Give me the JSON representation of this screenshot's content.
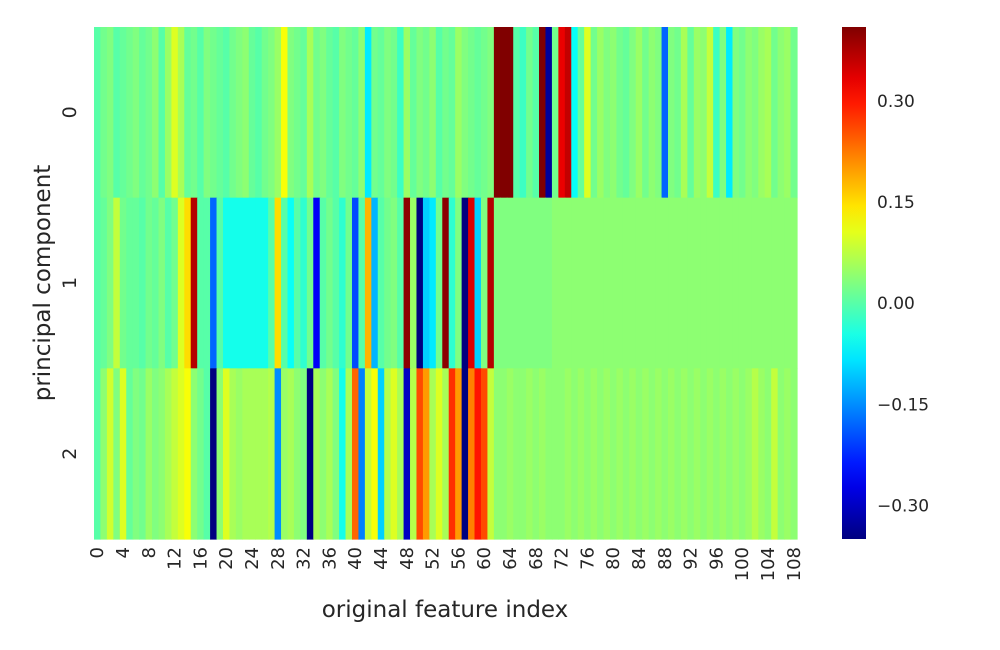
{
  "chart_data": {
    "type": "heatmap",
    "title": "",
    "xlabel": "original feature index",
    "ylabel": "principal component",
    "x_tick_labels": [
      "0",
      "4",
      "8",
      "12",
      "16",
      "20",
      "24",
      "28",
      "32",
      "36",
      "40",
      "44",
      "48",
      "52",
      "56",
      "60",
      "64",
      "68",
      "72",
      "76",
      "80",
      "84",
      "88",
      "92",
      "96",
      "100",
      "104",
      "108"
    ],
    "y_tick_labels": [
      "0",
      "1",
      "2"
    ],
    "colormap": "jet",
    "color_range": [
      -0.35,
      0.41
    ],
    "colorbar_ticks": [
      "0.30",
      "0.15",
      "0.00",
      "−0.15",
      "−0.30"
    ],
    "colorbar_tick_values": [
      0.3,
      0.15,
      0.0,
      -0.15,
      -0.3
    ],
    "rows": [
      [
        0.0,
        0.02,
        0.03,
        0.0,
        0.01,
        0.02,
        0.03,
        0.01,
        0.02,
        0.04,
        0.0,
        0.05,
        0.1,
        0.06,
        0.01,
        0.02,
        0.0,
        0.03,
        0.02,
        0.01,
        0.0,
        0.02,
        0.03,
        0.04,
        0.01,
        0.0,
        0.02,
        0.03,
        0.05,
        0.12,
        0.03,
        0.02,
        0.01,
        0.06,
        0.02,
        0.03,
        0.01,
        0.0,
        0.03,
        0.02,
        0.01,
        0.04,
        -0.08,
        0.02,
        0.01,
        0.03,
        0.02,
        -0.02,
        0.05,
        0.01,
        0.03,
        0.02,
        0.04,
        0.0,
        0.02,
        0.01,
        0.05,
        0.03,
        0.02,
        0.01,
        0.02,
        0.03,
        0.41,
        0.41,
        0.41,
        0.0,
        -0.02,
        0.02,
        0.0,
        0.41,
        -0.33,
        0.02,
        0.33,
        0.36,
        -0.06,
        0.01,
        0.1,
        0.02,
        0.05,
        0.03,
        0.04,
        0.02,
        0.01,
        0.03,
        0.05,
        0.02,
        0.04,
        0.03,
        -0.18,
        0.03,
        0.02,
        0.06,
        0.01,
        0.05,
        0.04,
        0.08,
        -0.02,
        0.03,
        -0.08,
        0.03,
        0.02,
        0.04,
        0.03,
        0.05,
        0.06,
        0.02,
        0.04,
        0.05,
        0.02
      ],
      [
        0.0,
        0.01,
        0.03,
        0.08,
        0.02,
        0.01,
        0.01,
        0.0,
        0.02,
        0.01,
        0.03,
        0.0,
        0.02,
        0.1,
        0.15,
        0.37,
        0.0,
        0.0,
        -0.18,
        0.0,
        -0.05,
        -0.05,
        -0.05,
        -0.05,
        -0.05,
        -0.05,
        -0.05,
        0.0,
        0.15,
        0.0,
        -0.06,
        0.0,
        -0.03,
        0.02,
        -0.26,
        0.0,
        0.02,
        0.0,
        -0.03,
        0.02,
        -0.2,
        0.0,
        0.18,
        -0.12,
        0.0,
        0.02,
        0.03,
        0.0,
        0.4,
        0.05,
        -0.35,
        -0.1,
        -0.08,
        0.02,
        0.4,
        -0.03,
        0.03,
        -0.36,
        0.34,
        -0.1,
        0.03,
        0.37,
        0.03,
        0.03,
        0.03,
        0.03,
        0.03,
        0.03,
        0.03,
        0.03,
        0.03,
        0.04,
        0.04,
        0.04,
        0.04,
        0.04,
        0.04,
        0.04,
        0.04,
        0.04,
        0.04,
        0.04,
        0.04,
        0.04,
        0.04,
        0.04,
        0.04,
        0.04,
        0.04,
        0.04,
        0.04,
        0.04,
        0.04,
        0.04,
        0.04,
        0.04,
        0.04,
        0.04,
        0.04,
        0.04,
        0.04,
        0.04,
        0.04,
        0.04,
        0.04,
        0.04,
        0.04,
        0.04,
        0.04
      ],
      [
        0.0,
        0.04,
        0.09,
        0.03,
        0.1,
        0.01,
        0.03,
        0.02,
        0.05,
        0.03,
        0.04,
        0.06,
        0.08,
        0.1,
        0.12,
        0.04,
        0.02,
        0.0,
        -0.4,
        0.04,
        0.1,
        0.06,
        0.05,
        0.06,
        0.06,
        0.06,
        0.06,
        0.07,
        -0.15,
        0.05,
        0.06,
        0.04,
        0.03,
        -0.35,
        0.06,
        0.04,
        0.06,
        0.03,
        -0.05,
        0.06,
        0.24,
        -0.16,
        0.08,
        0.12,
        -0.1,
        0.07,
        0.1,
        0.06,
        -0.3,
        0.07,
        0.26,
        0.2,
        0.06,
        0.1,
        0.06,
        0.28,
        0.2,
        -0.4,
        0.22,
        0.3,
        0.26,
        0.08,
        0.04,
        0.04,
        0.05,
        0.04,
        0.04,
        0.05,
        0.04,
        0.05,
        0.04,
        0.04,
        0.04,
        0.05,
        0.04,
        0.05,
        0.04,
        0.05,
        0.04,
        0.05,
        0.04,
        0.05,
        0.04,
        0.05,
        0.04,
        0.05,
        0.04,
        0.05,
        0.04,
        0.05,
        0.04,
        0.05,
        0.04,
        0.05,
        0.04,
        0.05,
        0.04,
        0.05,
        0.04,
        0.05,
        0.04,
        0.05,
        0.07,
        0.05,
        0.04,
        0.08,
        0.04,
        0.05,
        0.04
      ]
    ]
  }
}
